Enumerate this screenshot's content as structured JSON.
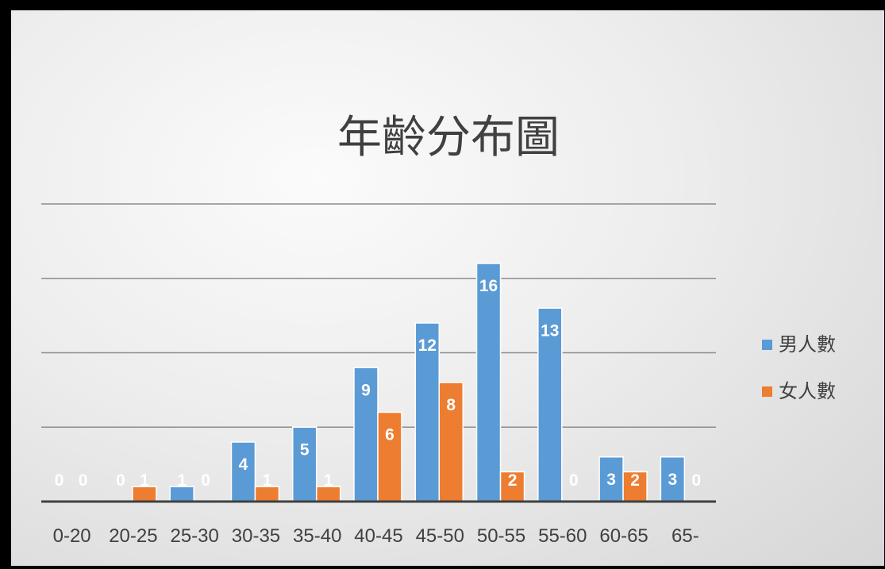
{
  "chart_data": {
    "type": "bar",
    "title": "年齡分布圖",
    "categories": [
      "0-20",
      "20-25",
      "25-30",
      "30-35",
      "35-40",
      "40-45",
      "45-50",
      "50-55",
      "55-60",
      "60-65",
      "65-"
    ],
    "series": [
      {
        "name": "男人數",
        "color": "#5b9bd5",
        "values": [
          0,
          0,
          1,
          4,
          5,
          9,
          12,
          16,
          13,
          3,
          3
        ]
      },
      {
        "name": "女人數",
        "color": "#ed7d31",
        "values": [
          0,
          1,
          0,
          1,
          1,
          6,
          8,
          2,
          0,
          2,
          0
        ]
      }
    ],
    "ylim": [
      0,
      20
    ],
    "gridlines": true,
    "legend_position": "right",
    "data_labels": true,
    "xlabel": "",
    "ylabel": ""
  }
}
